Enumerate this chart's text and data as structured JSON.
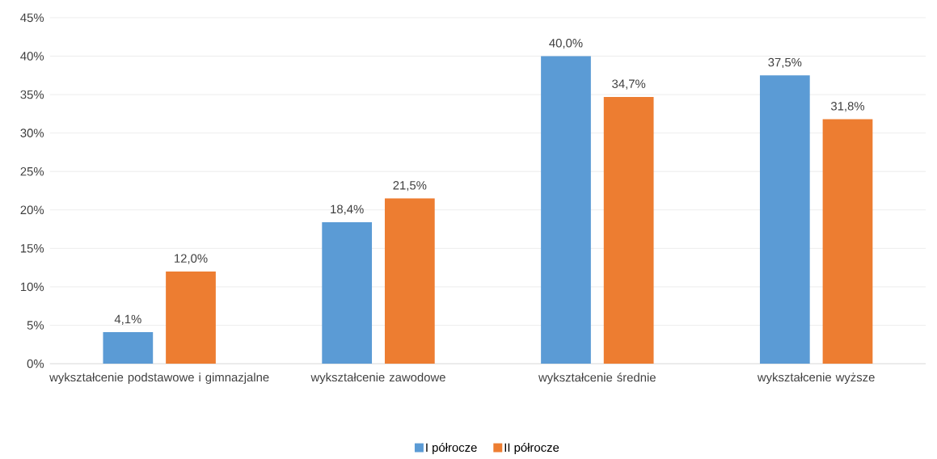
{
  "chart_data": {
    "type": "bar",
    "categories": [
      "wykształcenie podstawowe i gimnazjalne",
      "wykształcenie zawodowe",
      "wykształcenie średnie",
      "wykształcenie wyższe"
    ],
    "series": [
      {
        "name": "I półrocze",
        "color": "#5b9bd5",
        "values": [
          4.1,
          18.4,
          40.0,
          37.5
        ],
        "value_labels": [
          "4,1%",
          "18,4%",
          "40,0%",
          "37,5%"
        ]
      },
      {
        "name": "II półrocze",
        "color": "#ed7d31",
        "values": [
          12.0,
          21.5,
          34.7,
          31.8
        ],
        "value_labels": [
          "12,0%",
          "21,5%",
          "34,7%",
          "31,8%"
        ]
      }
    ],
    "ylim": [
      0,
      45
    ],
    "yticks": [
      {
        "value": 0,
        "label": "0%"
      },
      {
        "value": 5,
        "label": "5%"
      },
      {
        "value": 10,
        "label": "10%"
      },
      {
        "value": 15,
        "label": "15%"
      },
      {
        "value": 20,
        "label": "20%"
      },
      {
        "value": 25,
        "label": "25%"
      },
      {
        "value": 30,
        "label": "30%"
      },
      {
        "value": 35,
        "label": "35%"
      },
      {
        "value": 40,
        "label": "40%"
      },
      {
        "value": 45,
        "label": "45%"
      }
    ],
    "grid": "y",
    "legend": "bottom"
  }
}
